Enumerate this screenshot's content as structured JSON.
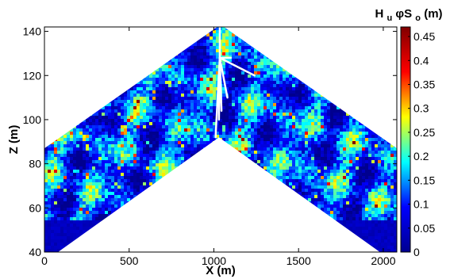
{
  "chart_data": {
    "type": "heatmap",
    "xlabel": "X (m)",
    "ylabel": "Z (m)",
    "colorbar_label": {
      "main": "H",
      "sub1": "u",
      "mid": "φS",
      "sub2": "o",
      "unit": " (m)"
    },
    "xlim": [
      0,
      2080
    ],
    "ylim": [
      40,
      142
    ],
    "x_ticks": [
      0,
      500,
      1000,
      1500,
      2000
    ],
    "y_ticks": [
      40,
      60,
      80,
      100,
      120,
      140
    ],
    "colorbar_range": [
      0,
      0.47
    ],
    "colorbar_ticks": [
      0,
      0.05,
      0.1,
      0.15,
      0.2,
      0.25,
      0.3,
      0.35,
      0.4,
      0.45
    ],
    "colormap": [
      "#00008f",
      "#0000ff",
      "#00ffff",
      "#ffff00",
      "#ff0000",
      "#800000"
    ],
    "domain_top_boundary": [
      [
        0,
        87
      ],
      [
        1020,
        142
      ],
      [
        1060,
        142
      ],
      [
        2080,
        87
      ]
    ],
    "domain_bottom_boundary": [
      [
        0,
        40
      ],
      [
        80,
        40
      ],
      [
        1030,
        92
      ],
      [
        1980,
        40
      ],
      [
        2080,
        40
      ]
    ],
    "wells": [
      {
        "x": [
          1035,
          1035
        ],
        "z": [
          142,
          128
        ]
      },
      {
        "x": [
          1035,
          1010
        ],
        "z": [
          128,
          92
        ]
      },
      {
        "x": [
          1035,
          1030
        ],
        "z": [
          128,
          100
        ]
      },
      {
        "x": [
          1035,
          1045
        ],
        "z": [
          128,
          104
        ]
      },
      {
        "x": [
          1035,
          1080
        ],
        "z": [
          128,
          110
        ]
      },
      {
        "x": [
          1035,
          1100
        ],
        "z": [
          128,
          128
        ]
      },
      {
        "x": [
          1035,
          1240
        ],
        "z": [
          128,
          120
        ]
      }
    ]
  }
}
